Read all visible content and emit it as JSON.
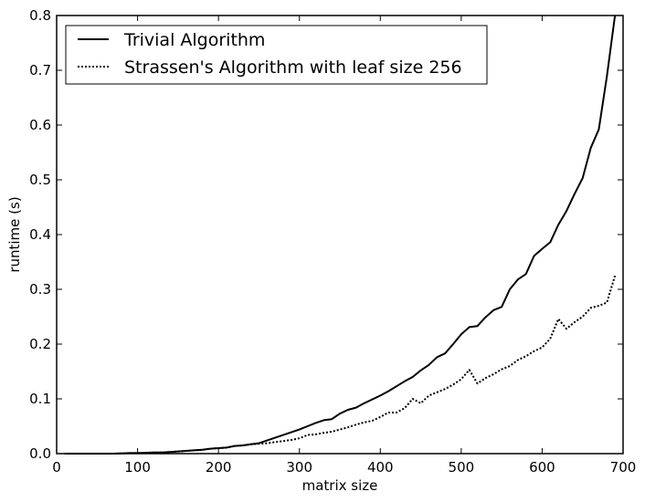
{
  "chart_data": {
    "type": "line",
    "xlabel": "matrix size",
    "ylabel": "runtime (s)",
    "xlim": [
      0,
      700
    ],
    "ylim": [
      0,
      0.8
    ],
    "xticks": [
      "0",
      "100",
      "200",
      "300",
      "400",
      "500",
      "600",
      "700"
    ],
    "yticks": [
      "0.0",
      "0.1",
      "0.2",
      "0.3",
      "0.4",
      "0.5",
      "0.6",
      "0.7",
      "0.8"
    ],
    "grid": false,
    "legend_position": "top-left",
    "series": [
      {
        "name": "Trivial Algorithm",
        "style": "solid",
        "color": "#000000",
        "x": [
          10,
          20,
          30,
          40,
          50,
          60,
          70,
          80,
          90,
          100,
          110,
          120,
          130,
          140,
          150,
          160,
          170,
          180,
          190,
          200,
          210,
          220,
          230,
          240,
          250,
          260,
          270,
          280,
          290,
          300,
          310,
          320,
          330,
          340,
          350,
          360,
          370,
          380,
          390,
          400,
          410,
          420,
          430,
          440,
          450,
          460,
          470,
          480,
          490,
          500,
          510,
          520,
          530,
          540,
          550,
          560,
          570,
          580,
          590,
          600,
          610,
          620,
          630,
          640,
          650,
          660,
          670,
          680,
          690
        ],
        "y": [
          0.0,
          0.0,
          0.0,
          0.0,
          0.0,
          0.0,
          0.0,
          0.0005,
          0.001,
          0.001,
          0.0015,
          0.002,
          0.002,
          0.003,
          0.004,
          0.005,
          0.006,
          0.007,
          0.009,
          0.01,
          0.011,
          0.014,
          0.015,
          0.017,
          0.019,
          0.024,
          0.029,
          0.034,
          0.039,
          0.044,
          0.05,
          0.056,
          0.061,
          0.063,
          0.073,
          0.08,
          0.084,
          0.092,
          0.099,
          0.106,
          0.114,
          0.123,
          0.132,
          0.14,
          0.152,
          0.162,
          0.176,
          0.183,
          0.2,
          0.218,
          0.231,
          0.233,
          0.249,
          0.262,
          0.268,
          0.3,
          0.318,
          0.328,
          0.361,
          0.374,
          0.386,
          0.418,
          0.443,
          0.474,
          0.503,
          0.558,
          0.592,
          0.689,
          0.8
        ]
      },
      {
        "name": "Strassen's Algorithm with leaf size 256",
        "style": "dotted",
        "color": "#000000",
        "x": [
          10,
          20,
          30,
          40,
          50,
          60,
          70,
          80,
          90,
          100,
          110,
          120,
          130,
          140,
          150,
          160,
          170,
          180,
          190,
          200,
          210,
          220,
          230,
          240,
          250,
          260,
          270,
          280,
          290,
          300,
          310,
          320,
          330,
          340,
          350,
          360,
          370,
          380,
          390,
          400,
          410,
          420,
          430,
          440,
          450,
          460,
          470,
          480,
          490,
          500,
          510,
          520,
          530,
          540,
          550,
          560,
          570,
          580,
          590,
          600,
          610,
          620,
          630,
          640,
          650,
          660,
          670,
          680,
          690
        ],
        "y": [
          0.0,
          0.0,
          0.0,
          0.0,
          0.0,
          0.0,
          0.0,
          0.0005,
          0.001,
          0.001,
          0.0015,
          0.002,
          0.002,
          0.003,
          0.004,
          0.005,
          0.006,
          0.007,
          0.009,
          0.01,
          0.011,
          0.014,
          0.015,
          0.017,
          0.018,
          0.019,
          0.021,
          0.023,
          0.025,
          0.028,
          0.034,
          0.035,
          0.038,
          0.04,
          0.044,
          0.048,
          0.053,
          0.057,
          0.06,
          0.067,
          0.075,
          0.075,
          0.083,
          0.1,
          0.092,
          0.106,
          0.112,
          0.118,
          0.126,
          0.136,
          0.153,
          0.128,
          0.138,
          0.145,
          0.154,
          0.16,
          0.171,
          0.178,
          0.187,
          0.194,
          0.21,
          0.246,
          0.228,
          0.24,
          0.25,
          0.266,
          0.27,
          0.276,
          0.325
        ]
      }
    ]
  }
}
